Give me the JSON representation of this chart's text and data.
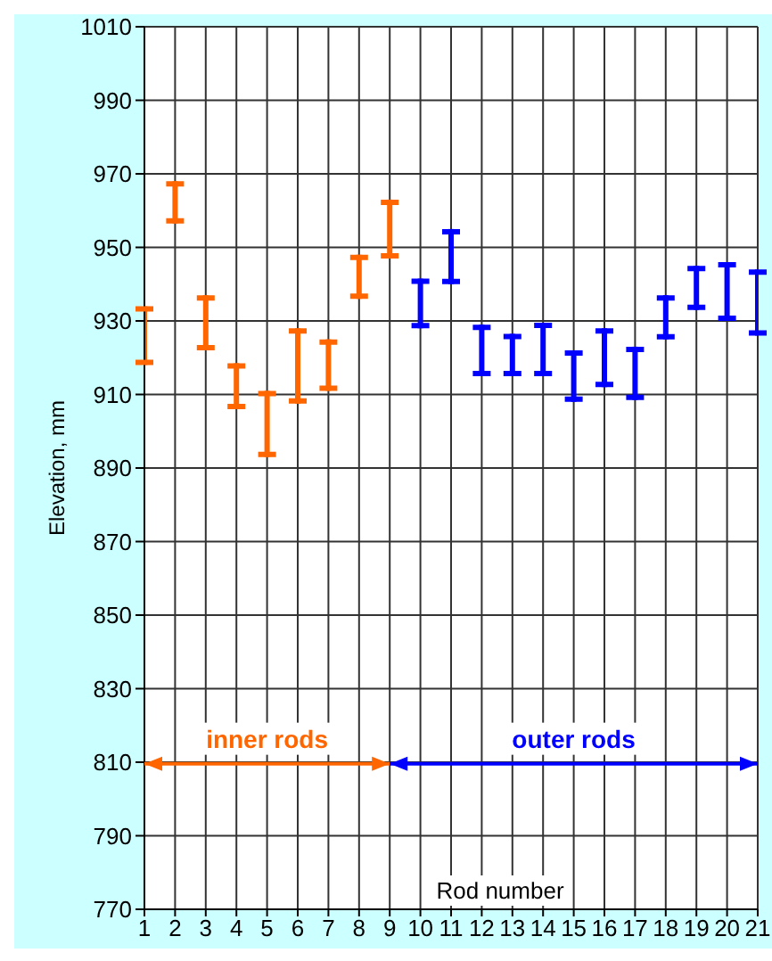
{
  "chart_data": {
    "type": "bar",
    "xlabel": "Rod number",
    "ylabel": "Elevation, mm",
    "xlim": [
      1,
      21
    ],
    "xticks": [
      1,
      2,
      3,
      4,
      5,
      6,
      7,
      8,
      9,
      10,
      11,
      12,
      13,
      14,
      15,
      16,
      17,
      18,
      19,
      20,
      21
    ],
    "ylim": [
      770,
      1010
    ],
    "yticks": [
      770,
      790,
      810,
      830,
      850,
      870,
      890,
      910,
      930,
      950,
      970,
      990,
      1010
    ],
    "grid": true,
    "series": [
      {
        "color": "#ff6600",
        "x": [
          1,
          2,
          3,
          4,
          5,
          6,
          7,
          8,
          9
        ],
        "base": [
          918,
          956.5,
          922,
          906,
          893,
          907.5,
          911,
          936,
          947
        ],
        "values": [
          16,
          11.5,
          15,
          12.5,
          18,
          20.5,
          14,
          12,
          16
        ]
      },
      {
        "color": "#0000ff",
        "x": [
          10,
          11,
          12,
          13,
          14,
          15,
          16,
          17,
          18,
          19,
          20,
          21
        ],
        "base": [
          928,
          940,
          915,
          915,
          915,
          908,
          912,
          908.5,
          925,
          933,
          930,
          926
        ],
        "values": [
          13.5,
          15,
          14,
          11.5,
          14.5,
          14,
          16,
          14.5,
          12,
          12,
          16,
          18
        ]
      }
    ],
    "annotations": [
      "inner rods",
      "outer rods"
    ]
  }
}
